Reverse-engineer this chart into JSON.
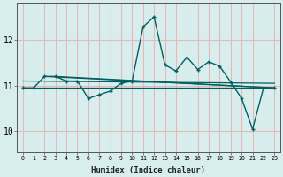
{
  "xlabel": "Humidex (Indice chaleur)",
  "bg_color": "#d8eeee",
  "grid_color": "#e8b8b8",
  "line_color": "#006060",
  "x_values": [
    0,
    1,
    2,
    3,
    4,
    5,
    6,
    7,
    8,
    9,
    10,
    11,
    12,
    13,
    14,
    15,
    16,
    17,
    18,
    19,
    20,
    21,
    22,
    23
  ],
  "main_line": [
    10.95,
    10.95,
    11.2,
    11.2,
    11.1,
    11.1,
    10.72,
    10.8,
    10.88,
    11.05,
    11.1,
    12.28,
    12.5,
    11.45,
    11.32,
    11.62,
    11.35,
    11.52,
    11.42,
    11.08,
    10.72,
    10.05,
    10.95,
    10.95
  ],
  "ref_lines": [
    {
      "x": [
        0,
        23
      ],
      "y": [
        10.95,
        10.95
      ]
    },
    {
      "x": [
        2,
        23
      ],
      "y": [
        11.2,
        10.95
      ]
    },
    {
      "x": [
        3,
        23
      ],
      "y": [
        11.2,
        10.95
      ]
    },
    {
      "x": [
        0,
        23
      ],
      "y": [
        11.1,
        11.05
      ]
    }
  ],
  "ylim": [
    9.55,
    12.8
  ],
  "xlim": [
    -0.5,
    23.5
  ],
  "yticks": [
    10,
    11,
    12
  ],
  "xticks": [
    0,
    1,
    2,
    3,
    4,
    5,
    6,
    7,
    8,
    9,
    10,
    11,
    12,
    13,
    14,
    15,
    16,
    17,
    18,
    19,
    20,
    21,
    22,
    23
  ]
}
